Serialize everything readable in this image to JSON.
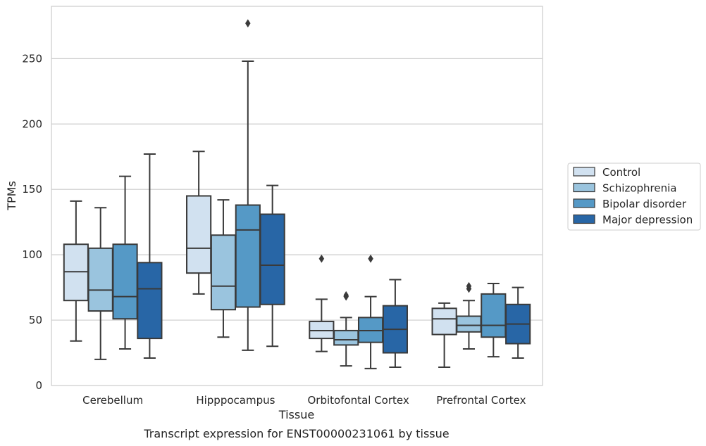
{
  "caption": "Transcript expression for ENST00000231061 by tissue",
  "chart_data": {
    "type": "box",
    "title": "",
    "xlabel": "Tissue",
    "ylabel": "TPMs",
    "ylim": [
      0,
      290
    ],
    "yticks": [
      0,
      50,
      100,
      150,
      200,
      250
    ],
    "grid": "horizontal",
    "legend_position": "right",
    "categories": [
      "Cerebellum",
      "Hipppocampus",
      "Orbitofontal Cortex",
      "Prefrontal Cortex"
    ],
    "series": [
      {
        "name": "Control",
        "color": "#d1e1f0",
        "stats": [
          {
            "min": 34,
            "q1": 65,
            "median": 87,
            "q3": 108,
            "max": 141,
            "outliers": []
          },
          {
            "min": 70,
            "q1": 86,
            "median": 105,
            "q3": 145,
            "max": 179,
            "outliers": []
          },
          {
            "min": 26,
            "q1": 36,
            "median": 42,
            "q3": 49,
            "max": 66,
            "outliers": [
              97
            ]
          },
          {
            "min": 14,
            "q1": 39,
            "median": 51,
            "q3": 59,
            "max": 63,
            "outliers": []
          }
        ]
      },
      {
        "name": "Schizophrenia",
        "color": "#9ac4de",
        "stats": [
          {
            "min": 20,
            "q1": 57,
            "median": 73,
            "q3": 105,
            "max": 136,
            "outliers": []
          },
          {
            "min": 37,
            "q1": 58,
            "median": 76,
            "q3": 115,
            "max": 142,
            "outliers": []
          },
          {
            "min": 15,
            "q1": 31,
            "median": 35,
            "q3": 42,
            "max": 52,
            "outliers": [
              68,
              69
            ]
          },
          {
            "min": 28,
            "q1": 41,
            "median": 46,
            "q3": 53,
            "max": 65,
            "outliers": [
              74,
              76
            ]
          }
        ]
      },
      {
        "name": "Bipolar disorder",
        "color": "#5599c6",
        "stats": [
          {
            "min": 28,
            "q1": 51,
            "median": 68,
            "q3": 108,
            "max": 160,
            "outliers": []
          },
          {
            "min": 27,
            "q1": 60,
            "median": 119,
            "q3": 138,
            "max": 248,
            "outliers": [
              277
            ]
          },
          {
            "min": 13,
            "q1": 33,
            "median": 42,
            "q3": 52,
            "max": 68,
            "outliers": [
              97
            ]
          },
          {
            "min": 22,
            "q1": 37,
            "median": 46,
            "q3": 70,
            "max": 78,
            "outliers": []
          }
        ]
      },
      {
        "name": "Major depression",
        "color": "#2866a6",
        "stats": [
          {
            "min": 21,
            "q1": 36,
            "median": 74,
            "q3": 94,
            "max": 177,
            "outliers": []
          },
          {
            "min": 30,
            "q1": 62,
            "median": 92,
            "q3": 131,
            "max": 153,
            "outliers": []
          },
          {
            "min": 14,
            "q1": 25,
            "median": 43,
            "q3": 61,
            "max": 81,
            "outliers": []
          },
          {
            "min": 21,
            "q1": 32,
            "median": 47,
            "q3": 62,
            "max": 75,
            "outliers": []
          }
        ]
      }
    ]
  }
}
